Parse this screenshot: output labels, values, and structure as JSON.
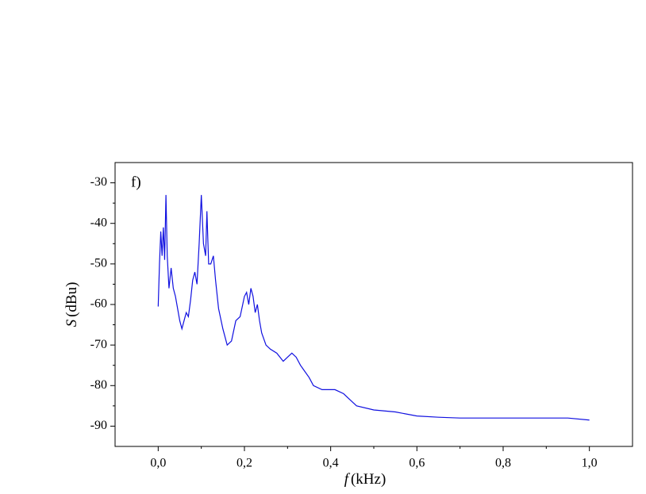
{
  "chart_data": {
    "type": "line",
    "annotation": "f)",
    "xlabel_symbol": "f",
    "xlabel_unit": "(kHz)",
    "ylabel_symbol": "S",
    "ylabel_unit": "(dBu)",
    "xlim": [
      -0.1,
      1.1
    ],
    "ylim": [
      -95,
      -25
    ],
    "xticks": [
      {
        "value": 0,
        "label": "0,0"
      },
      {
        "value": 0.2,
        "label": "0,2"
      },
      {
        "value": 0.4,
        "label": "0,4"
      },
      {
        "value": 0.6,
        "label": "0,6"
      },
      {
        "value": 0.8,
        "label": "0,8"
      },
      {
        "value": 1.0,
        "label": "1,0"
      }
    ],
    "yticks": [
      -30,
      -40,
      -50,
      -60,
      -70,
      -80,
      -90
    ],
    "grid": false,
    "x": [
      0.0,
      0.003,
      0.006,
      0.009,
      0.012,
      0.015,
      0.018,
      0.021,
      0.025,
      0.03,
      0.035,
      0.04,
      0.05,
      0.055,
      0.06,
      0.065,
      0.07,
      0.075,
      0.08,
      0.085,
      0.09,
      0.095,
      0.1,
      0.105,
      0.11,
      0.113,
      0.117,
      0.122,
      0.128,
      0.133,
      0.14,
      0.15,
      0.16,
      0.17,
      0.18,
      0.19,
      0.2,
      0.205,
      0.21,
      0.215,
      0.22,
      0.225,
      0.23,
      0.235,
      0.24,
      0.25,
      0.26,
      0.275,
      0.29,
      0.3,
      0.31,
      0.32,
      0.33,
      0.35,
      0.36,
      0.38,
      0.4,
      0.41,
      0.43,
      0.44,
      0.46,
      0.5,
      0.55,
      0.6,
      0.65,
      0.7,
      0.75,
      0.8,
      0.85,
      0.9,
      0.95,
      1.0
    ],
    "series": [
      {
        "name": "S",
        "color": "#1010e0",
        "values": [
          -60.5,
          -50,
          -42,
          -48,
          -41,
          -49,
          -33,
          -48,
          -56,
          -51,
          -56,
          -58,
          -64,
          -66,
          -64,
          -62,
          -63,
          -59,
          -54,
          -52,
          -55,
          -45,
          -33,
          -45,
          -48,
          -37,
          -50,
          -50,
          -48,
          -54,
          -61,
          -66,
          -70,
          -69,
          -64,
          -63,
          -58,
          -57,
          -60,
          -56,
          -58,
          -62,
          -60,
          -64,
          -67,
          -70,
          -71,
          -72,
          -74,
          -73,
          -72,
          -73,
          -75,
          -78,
          -80,
          -81,
          -81,
          -81,
          -82,
          -83,
          -85,
          -86,
          -86.5,
          -87.5,
          -87.8,
          -88,
          -88,
          -88,
          -88,
          -88,
          -88,
          -88.5
        ]
      }
    ]
  }
}
